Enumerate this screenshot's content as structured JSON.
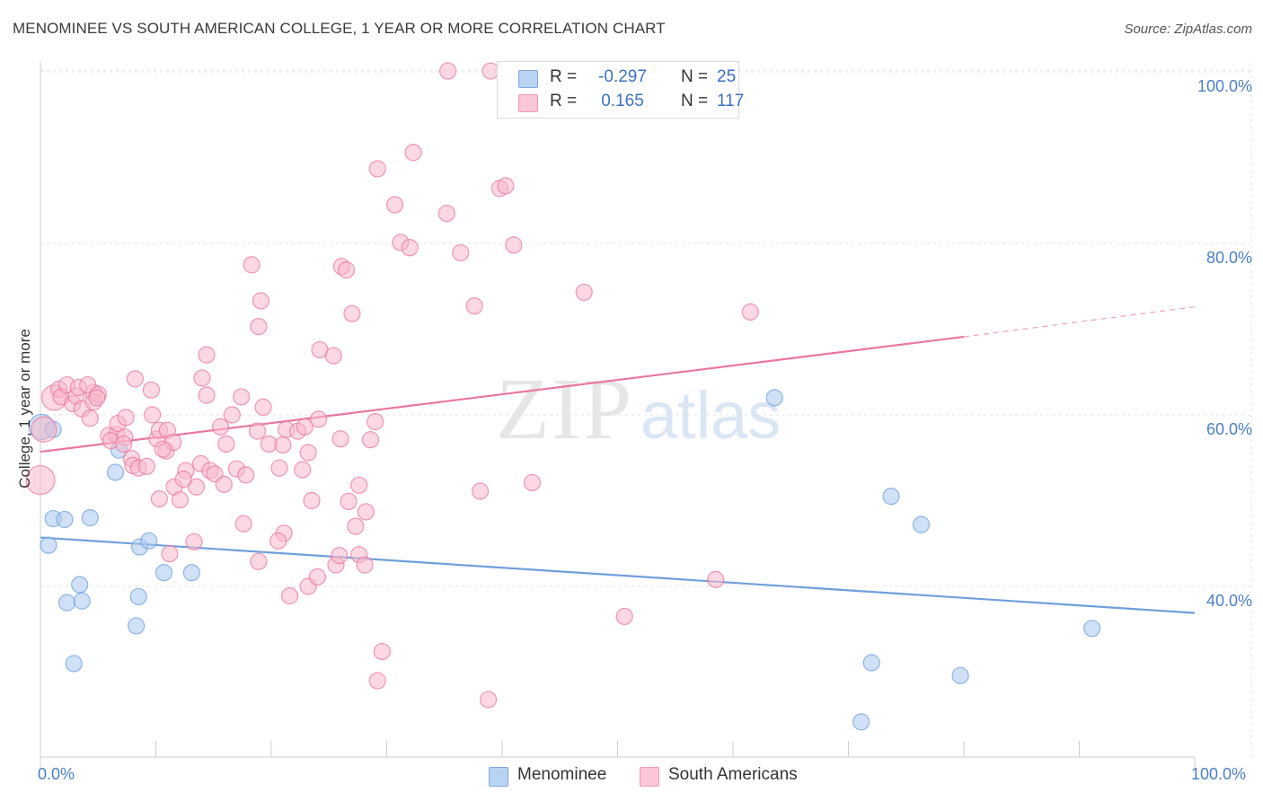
{
  "title": "MENOMINEE VS SOUTH AMERICAN COLLEGE, 1 YEAR OR MORE CORRELATION CHART",
  "source": "Source: ZipAtlas.com",
  "watermark": {
    "part1": "ZIP",
    "part2": "atlas"
  },
  "legend": {
    "rows": [
      {
        "r_label": "R =",
        "r_value": "-0.297",
        "n_label": "N =",
        "n_value": "25",
        "color": "#a9c8f0"
      },
      {
        "r_label": "R =",
        "r_value": "0.165",
        "n_label": "N =",
        "n_value": "117",
        "color": "#f7b8cb"
      }
    ]
  },
  "bottom_legend": {
    "series1": "Menominee",
    "series2": "South Americans"
  },
  "chart_data": {
    "type": "scatter",
    "title": "MENOMINEE VS SOUTH AMERICAN COLLEGE, 1 YEAR OR MORE CORRELATION CHART",
    "xlabel": "",
    "ylabel": "College, 1 year or more",
    "xlim": [
      0,
      100
    ],
    "ylim": [
      20,
      102
    ],
    "x_tick_labels": [
      "0.0%",
      "100.0%"
    ],
    "y_ticks": [
      40,
      60,
      80,
      100
    ],
    "y_tick_labels": [
      "40.0%",
      "60.0%",
      "80.0%",
      "100.0%"
    ],
    "grid": true,
    "series": [
      {
        "name": "Menominee",
        "color": "#6f9fdc",
        "fill": "#a9c8f0",
        "trend": {
          "x0": 0,
          "y0": 45.7,
          "x1": 100,
          "y1": 36.9
        },
        "points": [
          [
            0.1,
            58.6,
            14
          ],
          [
            1.1,
            58.3,
            9
          ],
          [
            0.7,
            44.8,
            9
          ],
          [
            1.1,
            47.9,
            9
          ],
          [
            2.1,
            47.8,
            9
          ],
          [
            4.3,
            48.0,
            9
          ],
          [
            6.8,
            55.9,
            9
          ],
          [
            6.5,
            53.3,
            9
          ],
          [
            3.4,
            40.2,
            9
          ],
          [
            2.3,
            38.1,
            9
          ],
          [
            3.6,
            38.3,
            9
          ],
          [
            8.3,
            35.4,
            9
          ],
          [
            8.5,
            38.8,
            9
          ],
          [
            8.6,
            44.6,
            9
          ],
          [
            9.4,
            45.3,
            9
          ],
          [
            10.7,
            41.6,
            9
          ],
          [
            13.1,
            41.6,
            9
          ],
          [
            2.9,
            31.0,
            9
          ],
          [
            63.6,
            62.0,
            9
          ],
          [
            73.7,
            50.5,
            9
          ],
          [
            76.3,
            47.2,
            9
          ],
          [
            72.0,
            31.1,
            9
          ],
          [
            79.7,
            29.6,
            9
          ],
          [
            71.1,
            24.2,
            9
          ],
          [
            91.1,
            35.1,
            9
          ]
        ]
      },
      {
        "name": "South Americans",
        "color": "#e9779c",
        "fill": "#f7b8cb",
        "trend": {
          "x0": 0,
          "y0": 55.7,
          "x1": 80,
          "y1": 69.1
        },
        "trend_dashed_to": {
          "x": 100,
          "y": 72.6
        },
        "points": [
          [
            0.0,
            52.4,
            16
          ],
          [
            0.3,
            58.3,
            14
          ],
          [
            1.2,
            62.0,
            14
          ],
          [
            1.6,
            63.0,
            9
          ],
          [
            1.8,
            62.1,
            9
          ],
          [
            2.3,
            63.5,
            9
          ],
          [
            2.8,
            61.3,
            9
          ],
          [
            3.1,
            62.2,
            9
          ],
          [
            3.6,
            60.7,
            9
          ],
          [
            3.3,
            63.2,
            9
          ],
          [
            4.6,
            62.6,
            9
          ],
          [
            4.6,
            61.5,
            9
          ],
          [
            4.1,
            63.5,
            9
          ],
          [
            4.3,
            59.6,
            9
          ],
          [
            5.0,
            62.4,
            9
          ],
          [
            4.9,
            62.0,
            9
          ],
          [
            5.9,
            57.6,
            9
          ],
          [
            6.6,
            57.7,
            9
          ],
          [
            6.1,
            57.0,
            9
          ],
          [
            6.7,
            59.0,
            9
          ],
          [
            7.3,
            57.4,
            9
          ],
          [
            7.2,
            56.6,
            9
          ],
          [
            7.9,
            54.9,
            9
          ],
          [
            8.0,
            54.1,
            9
          ],
          [
            8.5,
            53.8,
            9
          ],
          [
            7.4,
            59.7,
            9
          ],
          [
            9.2,
            54.0,
            9
          ],
          [
            9.7,
            60.0,
            9
          ],
          [
            10.1,
            57.2,
            9
          ],
          [
            10.3,
            58.2,
            9
          ],
          [
            10.9,
            55.8,
            9
          ],
          [
            11.0,
            58.2,
            9
          ],
          [
            11.5,
            56.8,
            9
          ],
          [
            9.6,
            62.9,
            9
          ],
          [
            8.2,
            64.2,
            9
          ],
          [
            10.3,
            50.2,
            9
          ],
          [
            11.6,
            51.6,
            9
          ],
          [
            12.1,
            50.1,
            9
          ],
          [
            12.6,
            53.5,
            9
          ],
          [
            13.5,
            51.6,
            9
          ],
          [
            13.9,
            54.3,
            9
          ],
          [
            14.7,
            53.5,
            9
          ],
          [
            15.1,
            53.1,
            9
          ],
          [
            15.9,
            51.9,
            9
          ],
          [
            16.1,
            56.6,
            9
          ],
          [
            17.0,
            53.7,
            9
          ],
          [
            17.8,
            53.0,
            9
          ],
          [
            16.6,
            60.0,
            9
          ],
          [
            15.6,
            58.6,
            9
          ],
          [
            14.4,
            62.3,
            9
          ],
          [
            14.0,
            64.3,
            9
          ],
          [
            17.4,
            62.1,
            9
          ],
          [
            18.8,
            58.1,
            9
          ],
          [
            19.8,
            56.6,
            9
          ],
          [
            21.0,
            56.5,
            9
          ],
          [
            21.3,
            58.3,
            9
          ],
          [
            19.3,
            60.9,
            9
          ],
          [
            20.7,
            53.8,
            9
          ],
          [
            22.7,
            53.6,
            9
          ],
          [
            23.2,
            55.6,
            9
          ],
          [
            22.3,
            58.1,
            9
          ],
          [
            22.9,
            58.6,
            9
          ],
          [
            24.1,
            59.5,
            9
          ],
          [
            23.5,
            50.0,
            9
          ],
          [
            26.0,
            57.2,
            9
          ],
          [
            26.7,
            49.9,
            9
          ],
          [
            27.6,
            51.8,
            9
          ],
          [
            28.6,
            57.1,
            9
          ],
          [
            29.0,
            59.2,
            9
          ],
          [
            27.3,
            47.0,
            9
          ],
          [
            28.2,
            48.7,
            9
          ],
          [
            17.6,
            47.3,
            9
          ],
          [
            18.9,
            42.9,
            9
          ],
          [
            21.1,
            46.2,
            9
          ],
          [
            20.6,
            45.3,
            9
          ],
          [
            21.6,
            38.9,
            9
          ],
          [
            23.2,
            40.0,
            9
          ],
          [
            24.0,
            41.1,
            9
          ],
          [
            25.6,
            42.5,
            9
          ],
          [
            25.9,
            43.6,
            9
          ],
          [
            27.6,
            43.7,
            9
          ],
          [
            28.1,
            42.5,
            9
          ],
          [
            13.3,
            45.2,
            9
          ],
          [
            11.2,
            43.8,
            9
          ],
          [
            14.4,
            67.0,
            9
          ],
          [
            18.3,
            77.5,
            9
          ],
          [
            19.1,
            73.3,
            9
          ],
          [
            18.9,
            70.3,
            9
          ],
          [
            24.2,
            67.6,
            9
          ],
          [
            25.4,
            66.9,
            9
          ],
          [
            26.1,
            77.3,
            9
          ],
          [
            26.5,
            76.9,
            9
          ],
          [
            27.0,
            71.8,
            9
          ],
          [
            29.2,
            88.7,
            9
          ],
          [
            30.7,
            84.5,
            9
          ],
          [
            31.2,
            80.1,
            9
          ],
          [
            32.0,
            79.5,
            9
          ],
          [
            32.3,
            90.6,
            9
          ],
          [
            35.2,
            83.5,
            9
          ],
          [
            36.4,
            78.9,
            9
          ],
          [
            37.6,
            72.7,
            9
          ],
          [
            39.8,
            86.4,
            9
          ],
          [
            40.3,
            86.7,
            9
          ],
          [
            41.0,
            79.8,
            9
          ],
          [
            35.3,
            100.1,
            9
          ],
          [
            39.0,
            100.1,
            9
          ],
          [
            38.1,
            51.1,
            9
          ],
          [
            42.6,
            52.1,
            9
          ],
          [
            47.1,
            74.3,
            9
          ],
          [
            61.5,
            72.0,
            9
          ],
          [
            58.5,
            40.8,
            9
          ],
          [
            50.6,
            36.5,
            9
          ],
          [
            29.6,
            32.4,
            9
          ],
          [
            29.2,
            29.0,
            9
          ],
          [
            38.8,
            26.8,
            9
          ],
          [
            12.4,
            52.5,
            9
          ],
          [
            10.6,
            56.0,
            9
          ]
        ]
      }
    ]
  }
}
